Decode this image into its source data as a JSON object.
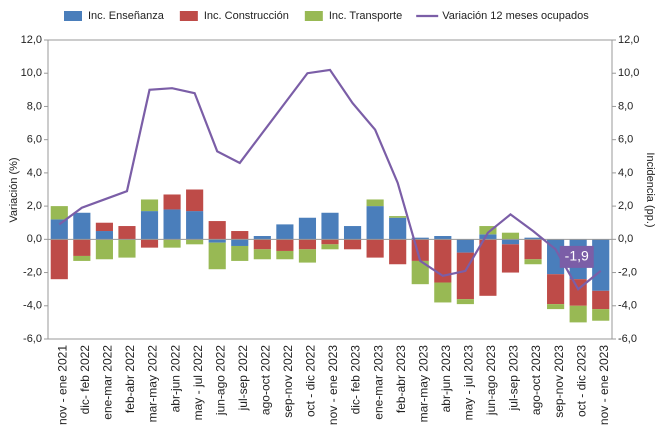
{
  "chart_data": {
    "type": "bar_line",
    "y_label": "Variación (%)",
    "y2_label": "Incidencia (pp.)",
    "categories": [
      "nov - ene 2021",
      "dic- feb 2022",
      "ene-mar 2022",
      "feb-abr 2022",
      "mar-may 2022",
      "abr-jun 2022",
      "may - jul 2022",
      "jun-ago 2022",
      "jul-sep 2022",
      "ago-oct 2022",
      "sep-nov 2022",
      "oct - dic 2022",
      "nov - ene 2023",
      "dic- feb 2023",
      "ene-mar 2023",
      "feb-abr 2023",
      "mar-may 2023",
      "abr-jun 2023",
      "may - jul 2023",
      "jun-ago 2023",
      "jul-sep 2023",
      "ago-oct 2023",
      "sep-nov 2023",
      "oct - dic 2023",
      "nov - ene 2023"
    ],
    "series": [
      {
        "name": "Inc. Enseñanza",
        "color": "#4a7ebb",
        "type": "bar",
        "axis": "y2",
        "values": [
          1.2,
          1.6,
          0.5,
          0.0,
          1.7,
          1.8,
          1.7,
          -0.2,
          -0.4,
          0.2,
          0.9,
          1.3,
          1.6,
          0.8,
          2.0,
          1.3,
          0.1,
          0.2,
          -0.8,
          0.3,
          -0.3,
          0.1,
          -2.1,
          -2.4,
          -3.1
        ]
      },
      {
        "name": "Inc. Construcción",
        "color": "#be4b48",
        "type": "bar",
        "axis": "y2",
        "values": [
          -2.4,
          -1.0,
          0.5,
          0.8,
          -0.5,
          0.9,
          1.3,
          1.1,
          0.5,
          -0.6,
          -0.7,
          -0.6,
          -0.3,
          -0.6,
          -1.1,
          -1.5,
          -1.3,
          -2.6,
          -2.8,
          -3.4,
          -1.7,
          -1.2,
          -1.8,
          -1.6,
          -1.1
        ]
      },
      {
        "name": "Inc. Transporte",
        "color": "#98b954",
        "type": "bar",
        "axis": "y2",
        "values": [
          0.8,
          -0.3,
          -1.2,
          -1.1,
          0.7,
          -0.5,
          -0.3,
          -1.6,
          -0.9,
          -0.6,
          -0.5,
          -0.8,
          -0.3,
          0.0,
          0.4,
          0.1,
          -1.4,
          -1.2,
          -0.3,
          0.5,
          0.4,
          -0.3,
          -0.3,
          -1.0,
          -0.7
        ]
      },
      {
        "name": "Variación 12 meses ocupados",
        "color": "#7b5ea7",
        "type": "line",
        "values": [
          0.9,
          1.9,
          2.4,
          2.9,
          9.0,
          9.1,
          8.8,
          5.3,
          4.6,
          6.4,
          8.2,
          10.0,
          10.2,
          8.2,
          6.6,
          3.4,
          -1.3,
          -2.2,
          -1.9,
          0.4,
          1.5,
          0.5,
          -0.6,
          -3.0,
          -1.9
        ],
        "value_labels": [
          null,
          null,
          null,
          null,
          null,
          null,
          null,
          null,
          null,
          null,
          null,
          null,
          null,
          null,
          null,
          null,
          null,
          null,
          null,
          null,
          null,
          null,
          null,
          null,
          "-1,9"
        ]
      }
    ],
    "ylim": [
      -6,
      12
    ],
    "yticks": [
      {
        "value": 12,
        "label": "12,0"
      },
      {
        "value": 10,
        "label": "10,0"
      },
      {
        "value": 8,
        "label": "8,0"
      },
      {
        "value": 6,
        "label": "6,0"
      },
      {
        "value": 4,
        "label": "4,0"
      },
      {
        "value": 2,
        "label": "2,0"
      },
      {
        "value": 0,
        "label": "0,0"
      },
      {
        "value": -2,
        "label": "-2,0"
      },
      {
        "value": -4,
        "label": "-4,0"
      },
      {
        "value": -6,
        "label": "-6,0"
      }
    ],
    "y2lim": [
      -6,
      12
    ],
    "y2ticks": [
      {
        "value": 12,
        "label": "12,0"
      },
      {
        "value": 10,
        "label": "10,0"
      },
      {
        "value": 8,
        "label": "8,0"
      },
      {
        "value": 6,
        "label": "6,0"
      },
      {
        "value": 4,
        "label": "4,0"
      },
      {
        "value": 2,
        "label": "2,0"
      },
      {
        "value": 0,
        "label": "0,0"
      },
      {
        "value": -2,
        "label": "-2,0"
      },
      {
        "value": -4,
        "label": "-4,0"
      },
      {
        "value": -6,
        "label": "-6,0"
      }
    ],
    "legend": "top"
  }
}
